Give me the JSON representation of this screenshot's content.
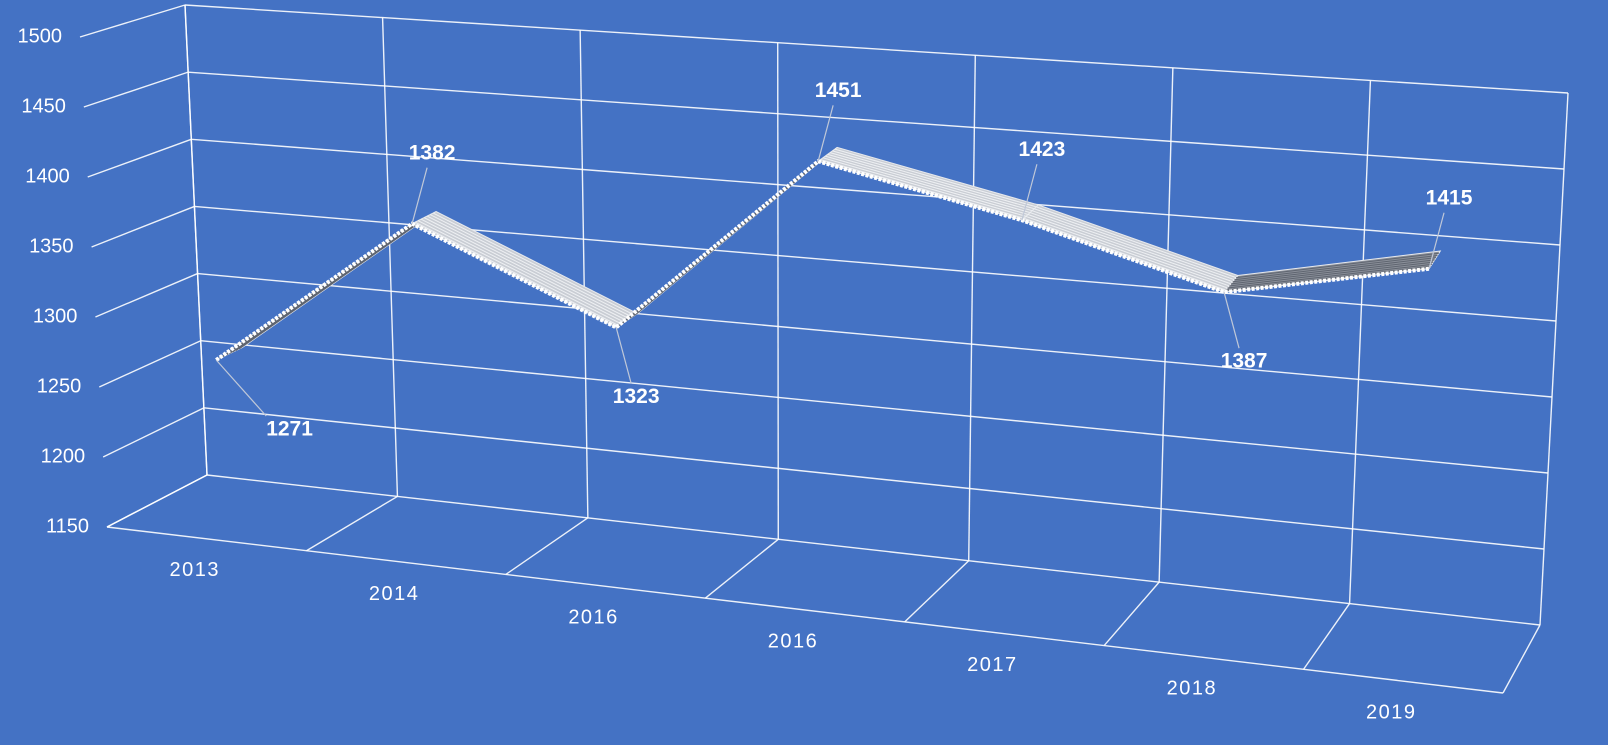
{
  "chart_data": {
    "type": "line3d",
    "categories": [
      "2013",
      "2014",
      "2016",
      "2016",
      "2017",
      "2018",
      "2019"
    ],
    "values": [
      1271,
      1382,
      1323,
      1451,
      1423,
      1387,
      1415
    ],
    "color": "#ffffff",
    "ylim": [
      1150,
      1500
    ],
    "yticks": [
      1150,
      1200,
      1250,
      1300,
      1350,
      1400,
      1450,
      1500
    ],
    "grid": true,
    "background": "#4472c4"
  }
}
